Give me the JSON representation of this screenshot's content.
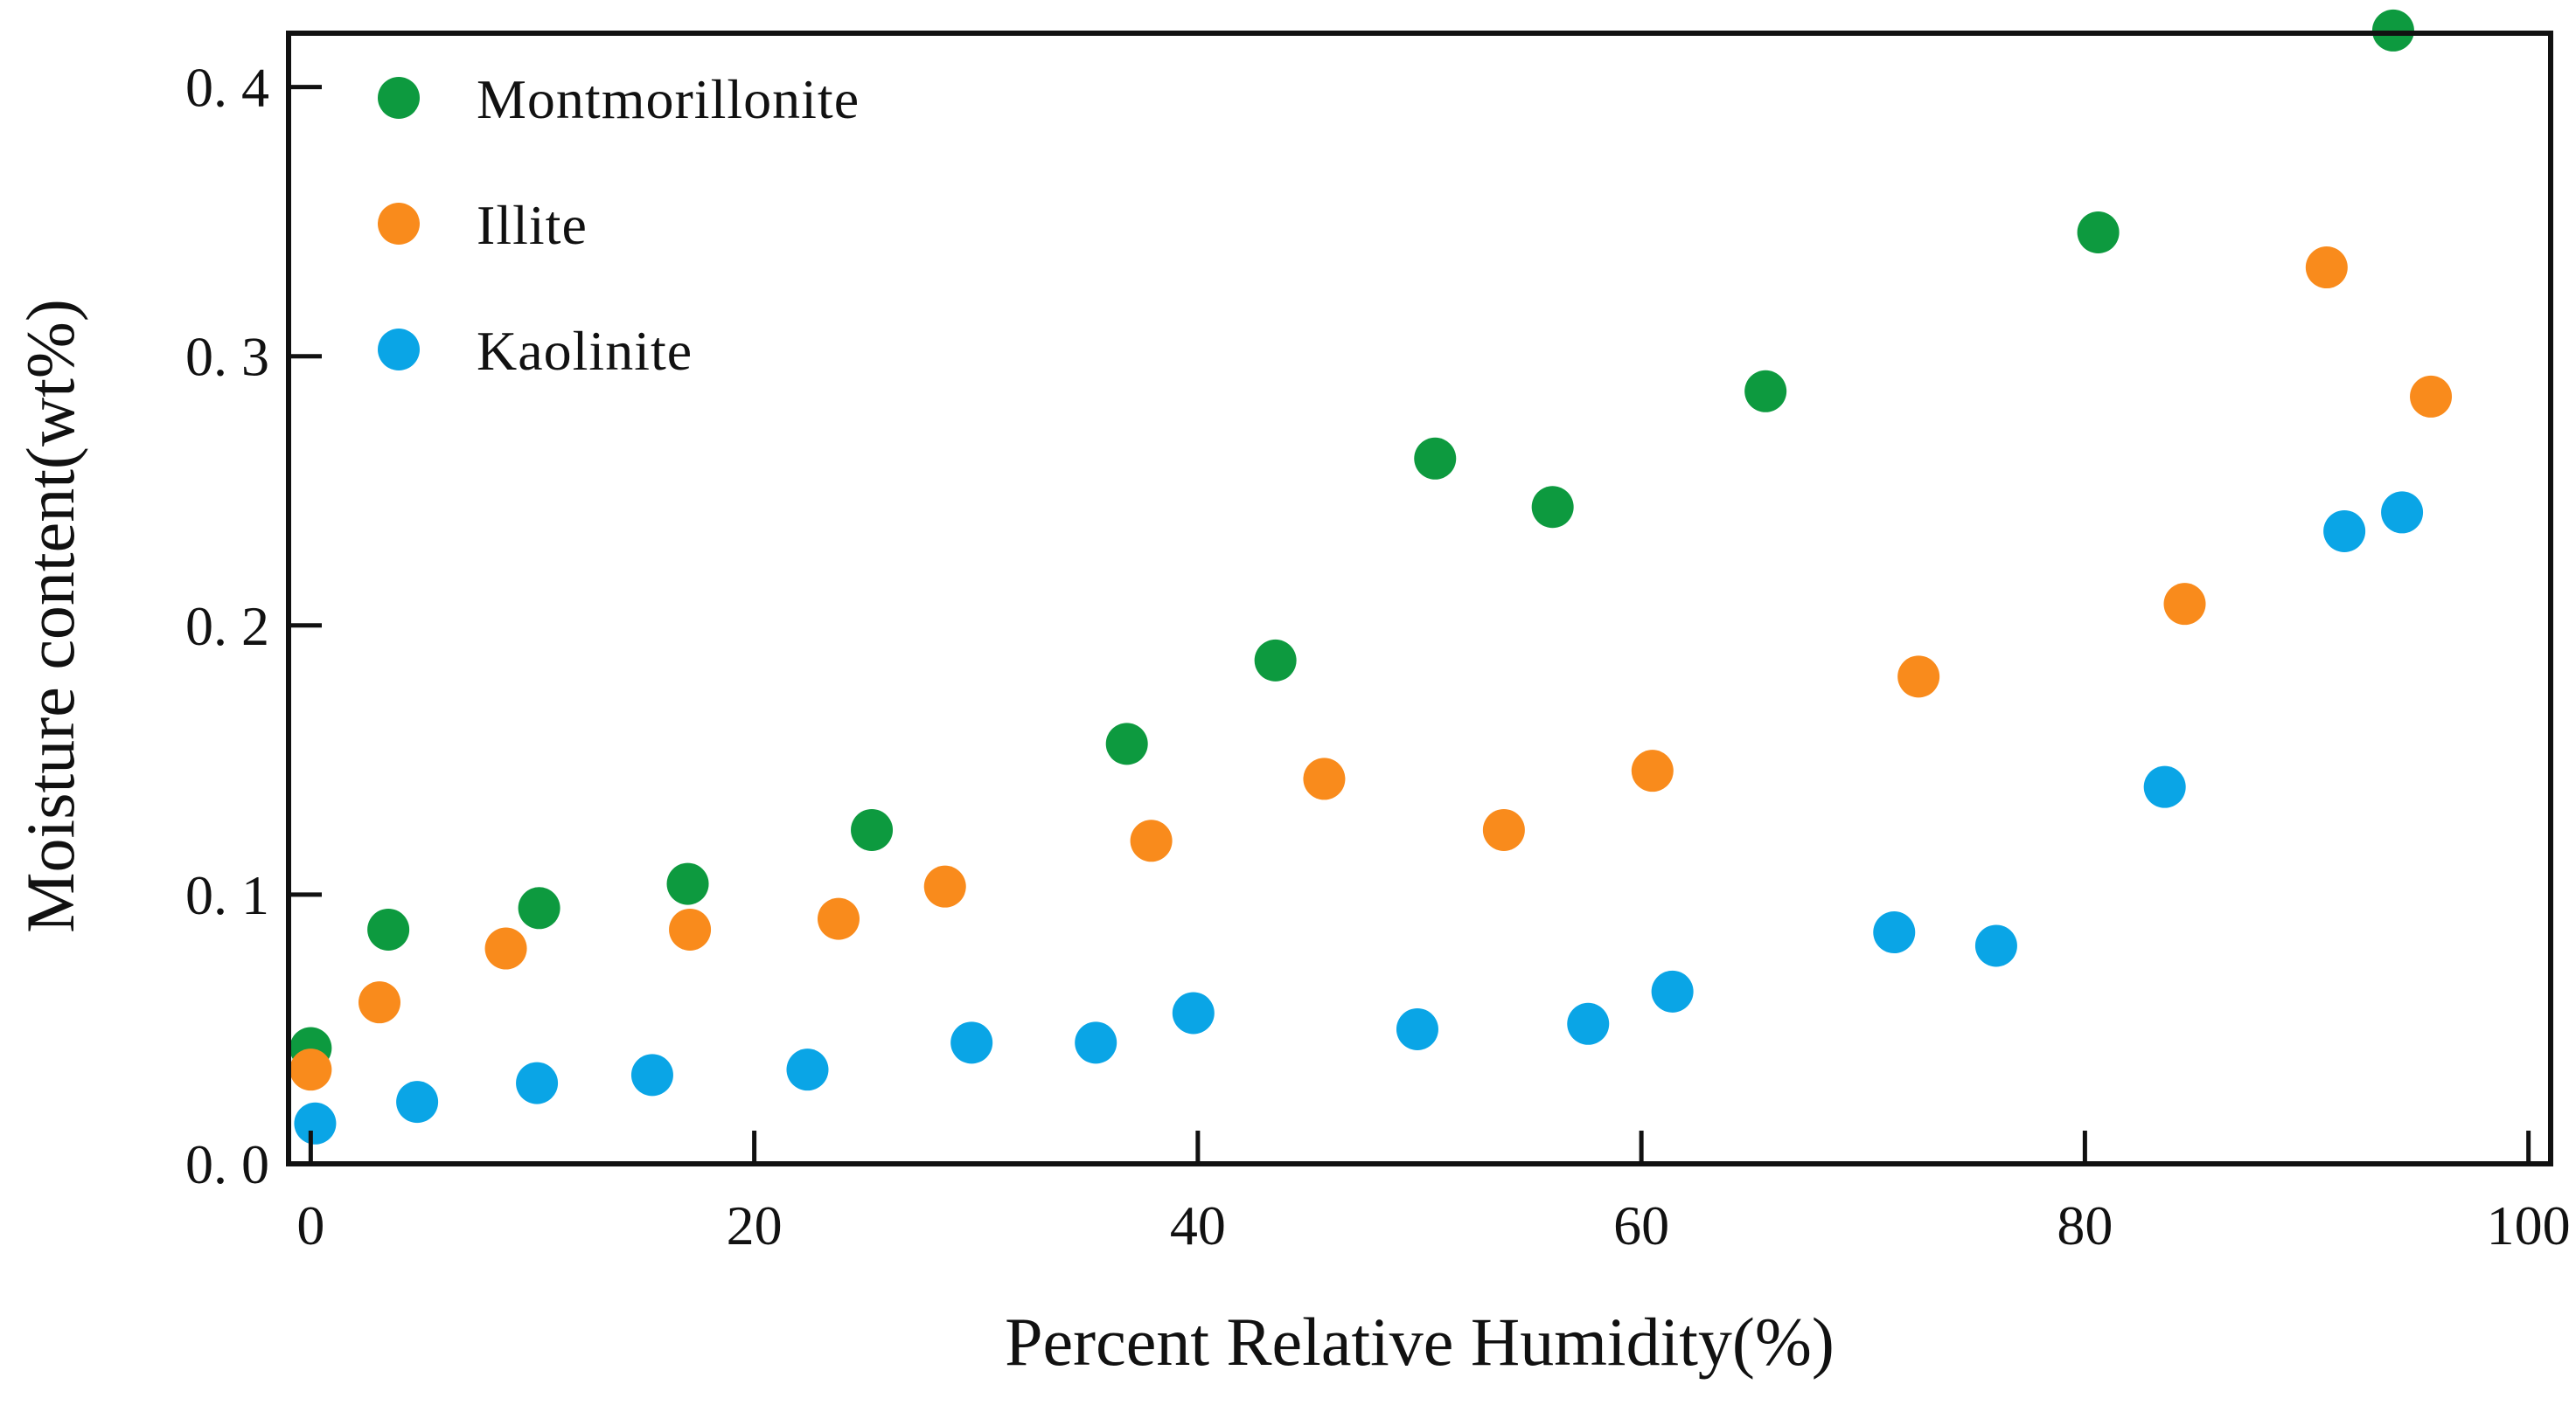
{
  "chart_data": {
    "type": "scatter",
    "title": "",
    "xlabel": "Percent Relative Humidity(%)",
    "ylabel": "Moisture content(wt%)",
    "xlim": [
      -1,
      101
    ],
    "ylim": [
      0,
      0.42
    ],
    "xticks": [
      0,
      20,
      40,
      60,
      80,
      100
    ],
    "xtick_labels": [
      "0",
      "20",
      "40",
      "60",
      "80",
      "100"
    ],
    "yticks": [
      0,
      0.1,
      0.2,
      0.3,
      0.4
    ],
    "ytick_labels": [
      "0. 0",
      "0. 1",
      "0. 2",
      "0. 3",
      "0. 4"
    ],
    "grid": false,
    "legend_position": "top-left",
    "series": [
      {
        "name": "Montmorillonite",
        "color": "#0d9a3f",
        "x": [
          0,
          3.5,
          10.3,
          17,
          25.3,
          36.8,
          43.5,
          50.7,
          56,
          65.6,
          80.6,
          93.9
        ],
        "y": [
          0.043,
          0.087,
          0.095,
          0.104,
          0.124,
          0.156,
          0.187,
          0.262,
          0.244,
          0.287,
          0.346,
          0.421
        ]
      },
      {
        "name": "Illite",
        "color": "#f98b1c",
        "x": [
          0,
          3.1,
          8.8,
          17.1,
          23.8,
          28.6,
          37.9,
          45.7,
          53.8,
          60.5,
          72.5,
          84.5,
          90.9,
          95.6
        ],
        "y": [
          0.035,
          0.06,
          0.08,
          0.087,
          0.091,
          0.103,
          0.12,
          0.143,
          0.124,
          0.146,
          0.181,
          0.208,
          0.333,
          0.285
        ]
      },
      {
        "name": "Kaolinite",
        "color": "#0aa5e6",
        "x": [
          0.2,
          4.8,
          10.2,
          15.4,
          22.4,
          29.8,
          35.4,
          39.8,
          49.9,
          57.6,
          61.4,
          71.4,
          76,
          83.6,
          91.7,
          94.3
        ],
        "y": [
          0.015,
          0.023,
          0.03,
          0.033,
          0.035,
          0.045,
          0.045,
          0.056,
          0.05,
          0.052,
          0.064,
          0.086,
          0.081,
          0.14,
          0.235,
          0.242
        ]
      }
    ]
  }
}
